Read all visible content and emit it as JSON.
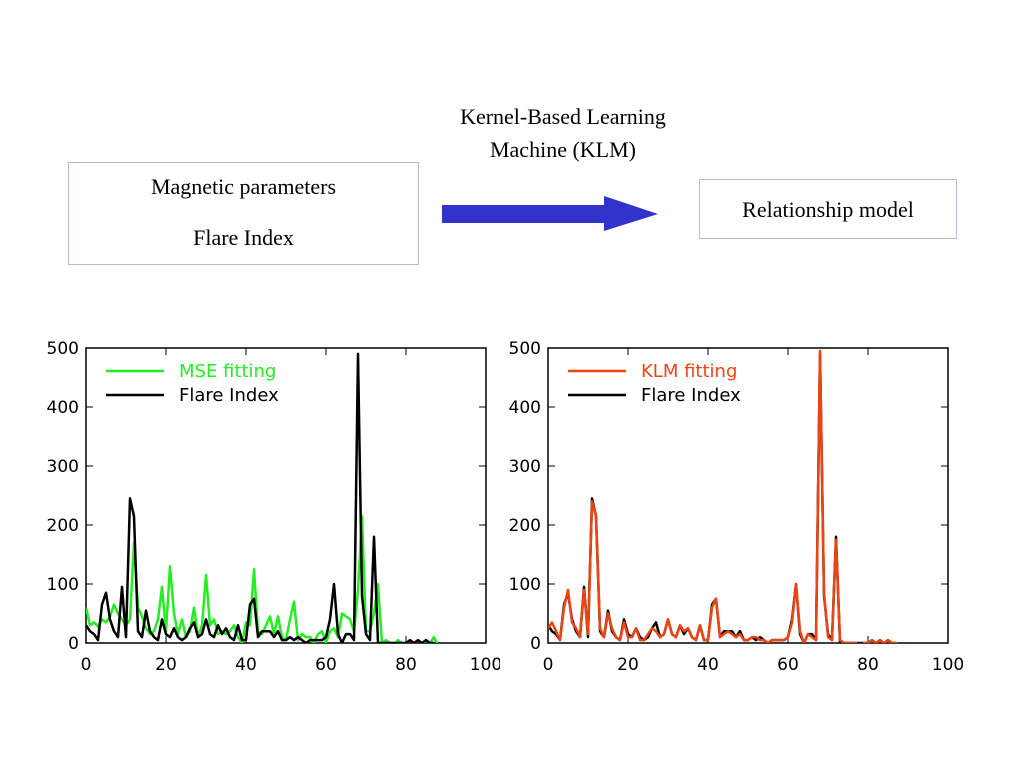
{
  "diagram": {
    "input_box": {
      "line1": "Magnetic parameters",
      "line2": "Flare Index"
    },
    "arrow_label": {
      "line1": "Kernel-Based Learning",
      "line2": "Machine (KLM)"
    },
    "output_box": {
      "label": "Relationship model"
    },
    "arrow_color": "#3232cc"
  },
  "chart_data": [
    {
      "type": "line",
      "title": "",
      "xlabel": "",
      "ylabel": "",
      "xlim": [
        0,
        100
      ],
      "ylim": [
        0,
        500
      ],
      "xticks": [
        0,
        20,
        40,
        60,
        80,
        100
      ],
      "yticks": [
        0,
        100,
        200,
        300,
        400,
        500
      ],
      "legend_position": "top-left",
      "series": [
        {
          "name": "MSE fitting",
          "color": "#22ee22",
          "x": [
            0,
            1,
            2,
            3,
            4,
            5,
            6,
            7,
            8,
            9,
            10,
            11,
            12,
            13,
            14,
            15,
            16,
            17,
            18,
            19,
            20,
            21,
            22,
            23,
            24,
            25,
            26,
            27,
            28,
            29,
            30,
            31,
            32,
            33,
            34,
            35,
            36,
            37,
            38,
            39,
            40,
            41,
            42,
            43,
            44,
            45,
            46,
            47,
            48,
            49,
            50,
            51,
            52,
            53,
            54,
            55,
            56,
            57,
            58,
            59,
            60,
            61,
            62,
            63,
            64,
            65,
            66,
            67,
            68,
            69,
            70,
            71,
            72,
            73,
            74,
            75,
            76,
            77,
            78,
            79,
            80,
            81,
            82,
            83,
            84,
            85,
            86,
            87,
            88
          ],
          "y": [
            60,
            30,
            35,
            28,
            40,
            35,
            45,
            65,
            50,
            40,
            30,
            40,
            170,
            60,
            45,
            25,
            15,
            20,
            40,
            95,
            20,
            130,
            50,
            15,
            40,
            10,
            20,
            60,
            10,
            30,
            115,
            30,
            40,
            15,
            20,
            15,
            20,
            30,
            10,
            0,
            35,
            30,
            125,
            20,
            15,
            30,
            45,
            15,
            45,
            10,
            5,
            40,
            70,
            5,
            15,
            10,
            10,
            0,
            15,
            20,
            0,
            20,
            25,
            10,
            50,
            45,
            40,
            20,
            90,
            215,
            20,
            20,
            50,
            100,
            0,
            5,
            0,
            -5,
            5,
            0,
            -5,
            -5,
            -5,
            -5,
            -5,
            5,
            0,
            10,
            -5
          ]
        },
        {
          "name": "Flare Index",
          "color": "#000000",
          "x": [
            0,
            1,
            2,
            3,
            4,
            5,
            6,
            7,
            8,
            9,
            10,
            11,
            12,
            13,
            14,
            15,
            16,
            17,
            18,
            19,
            20,
            21,
            22,
            23,
            24,
            25,
            26,
            27,
            28,
            29,
            30,
            31,
            32,
            33,
            34,
            35,
            36,
            37,
            38,
            39,
            40,
            41,
            42,
            43,
            44,
            45,
            46,
            47,
            48,
            49,
            50,
            51,
            52,
            53,
            54,
            55,
            56,
            57,
            58,
            59,
            60,
            61,
            62,
            63,
            64,
            65,
            66,
            67,
            68,
            69,
            70,
            71,
            72,
            73,
            74,
            75,
            76,
            77,
            78,
            79,
            80,
            81,
            82,
            83,
            84,
            85,
            86,
            87,
            88
          ],
          "y": [
            30,
            20,
            15,
            5,
            65,
            85,
            40,
            20,
            10,
            95,
            10,
            245,
            215,
            20,
            10,
            55,
            20,
            10,
            5,
            40,
            15,
            10,
            25,
            10,
            5,
            10,
            25,
            35,
            10,
            15,
            40,
            15,
            10,
            30,
            15,
            25,
            10,
            5,
            30,
            5,
            5,
            65,
            75,
            10,
            20,
            20,
            20,
            10,
            20,
            5,
            5,
            10,
            5,
            10,
            5,
            0,
            5,
            5,
            5,
            5,
            10,
            40,
            100,
            15,
            0,
            15,
            15,
            5,
            490,
            80,
            15,
            5,
            180,
            0,
            0,
            0,
            0,
            0,
            0,
            0,
            0,
            5,
            0,
            5,
            0,
            5,
            0,
            0,
            -5
          ]
        }
      ]
    },
    {
      "type": "line",
      "title": "",
      "xlabel": "",
      "ylabel": "",
      "xlim": [
        0,
        100
      ],
      "ylim": [
        0,
        500
      ],
      "xticks": [
        0,
        20,
        40,
        60,
        80,
        100
      ],
      "yticks": [
        0,
        100,
        200,
        300,
        400,
        500
      ],
      "legend_position": "top-left",
      "series": [
        {
          "name": "Flare Index",
          "color": "#000000",
          "x": [
            0,
            1,
            2,
            3,
            4,
            5,
            6,
            7,
            8,
            9,
            10,
            11,
            12,
            13,
            14,
            15,
            16,
            17,
            18,
            19,
            20,
            21,
            22,
            23,
            24,
            25,
            26,
            27,
            28,
            29,
            30,
            31,
            32,
            33,
            34,
            35,
            36,
            37,
            38,
            39,
            40,
            41,
            42,
            43,
            44,
            45,
            46,
            47,
            48,
            49,
            50,
            51,
            52,
            53,
            54,
            55,
            56,
            57,
            58,
            59,
            60,
            61,
            62,
            63,
            64,
            65,
            66,
            67,
            68,
            69,
            70,
            71,
            72,
            73,
            74,
            75,
            76,
            77,
            78,
            79,
            80,
            81,
            82,
            83,
            84,
            85,
            86,
            87,
            88
          ],
          "y": [
            30,
            20,
            15,
            5,
            65,
            85,
            40,
            20,
            10,
            95,
            10,
            245,
            215,
            20,
            10,
            55,
            20,
            10,
            5,
            40,
            15,
            10,
            25,
            10,
            5,
            10,
            25,
            35,
            10,
            15,
            40,
            15,
            10,
            30,
            15,
            25,
            10,
            5,
            30,
            5,
            5,
            65,
            75,
            10,
            20,
            20,
            20,
            10,
            20,
            5,
            5,
            10,
            5,
            10,
            5,
            0,
            5,
            5,
            5,
            5,
            10,
            40,
            100,
            15,
            0,
            15,
            15,
            5,
            490,
            80,
            15,
            5,
            180,
            0,
            0,
            0,
            0,
            0,
            0,
            0,
            0,
            5,
            0,
            5,
            0,
            5,
            0,
            0,
            -5
          ]
        },
        {
          "name": "KLM fitting",
          "color": "#ee4411",
          "x": [
            0,
            1,
            2,
            3,
            4,
            5,
            6,
            7,
            8,
            9,
            10,
            11,
            12,
            13,
            14,
            15,
            16,
            17,
            18,
            19,
            20,
            21,
            22,
            23,
            24,
            25,
            26,
            27,
            28,
            29,
            30,
            31,
            32,
            33,
            34,
            35,
            36,
            37,
            38,
            39,
            40,
            41,
            42,
            43,
            44,
            45,
            46,
            47,
            48,
            49,
            50,
            51,
            52,
            53,
            54,
            55,
            56,
            57,
            58,
            59,
            60,
            61,
            62,
            63,
            64,
            65,
            66,
            67,
            68,
            69,
            70,
            71,
            72,
            73,
            74,
            75,
            76,
            77,
            78,
            79,
            80,
            81,
            82,
            83,
            84,
            85,
            86,
            87,
            88
          ],
          "y": [
            25,
            35,
            20,
            5,
            60,
            90,
            35,
            25,
            10,
            90,
            15,
            240,
            215,
            25,
            10,
            50,
            25,
            10,
            5,
            35,
            10,
            10,
            25,
            5,
            5,
            15,
            25,
            20,
            10,
            15,
            40,
            15,
            10,
            30,
            20,
            25,
            10,
            5,
            30,
            5,
            5,
            60,
            75,
            10,
            15,
            20,
            15,
            10,
            15,
            5,
            5,
            10,
            10,
            5,
            5,
            0,
            5,
            5,
            5,
            5,
            10,
            35,
            100,
            20,
            0,
            15,
            10,
            5,
            495,
            85,
            10,
            5,
            175,
            5,
            0,
            0,
            0,
            0,
            -5,
            0,
            0,
            5,
            0,
            5,
            0,
            5,
            0,
            0,
            -5
          ]
        }
      ],
      "legend_order": [
        "KLM fitting",
        "Flare Index"
      ]
    }
  ]
}
